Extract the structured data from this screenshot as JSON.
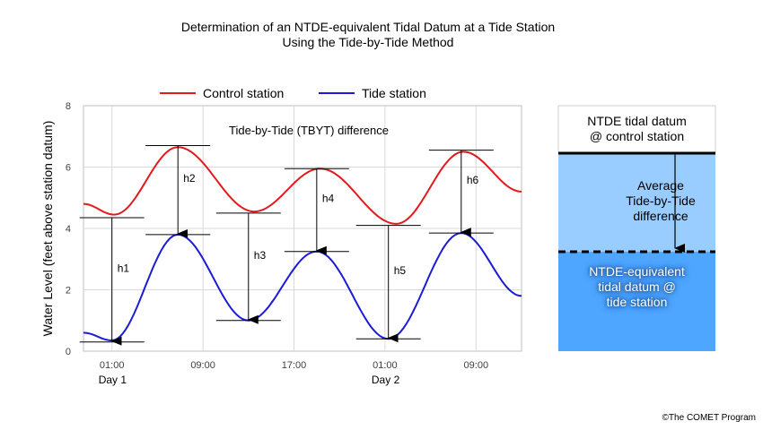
{
  "chart_data": {
    "type": "line",
    "title": "Determination of an NTDE-equivalent Tidal Datum at a Tide Station",
    "subtitle": "Using the Tide-by-Tide Method",
    "ylabel": "Water Level (feet above station datum)",
    "xlabel": "",
    "ylim": [
      0,
      8
    ],
    "yticks": [
      "0",
      "2",
      "4",
      "6",
      "8"
    ],
    "xticks": [
      "01:00",
      "09:00",
      "17:00",
      "01:00",
      "09:00"
    ],
    "day_labels": [
      "Day 1",
      "Day 2"
    ],
    "grid": true,
    "legend": "top",
    "annotation": "Tide-by-Tide (TBYT) difference",
    "series": [
      {
        "name": "Control station",
        "color": "#e31a1c",
        "extrema": [
          [
            -1.5,
            4.8
          ],
          [
            1.2,
            4.45
          ],
          [
            6.8,
            6.65
          ],
          [
            13.5,
            4.55
          ],
          [
            19.3,
            5.95
          ],
          [
            26.0,
            4.15
          ],
          [
            31.9,
            6.5
          ],
          [
            37.0,
            5.2
          ]
        ]
      },
      {
        "name": "Tide station",
        "color": "#1c1cd8",
        "extrema": [
          [
            -1.5,
            0.6
          ],
          [
            1.0,
            0.35
          ],
          [
            6.8,
            3.8
          ],
          [
            13.0,
            1.0
          ],
          [
            19.0,
            3.25
          ],
          [
            25.3,
            0.4
          ],
          [
            31.7,
            3.85
          ],
          [
            37.0,
            1.8
          ]
        ]
      }
    ],
    "differences": [
      {
        "label": "h1",
        "x": 1.0,
        "from": 4.35,
        "to": 0.3
      },
      {
        "label": "h2",
        "x": 6.8,
        "from": 6.7,
        "to": 3.8
      },
      {
        "label": "h3",
        "x": 13.0,
        "from": 4.5,
        "to": 1.0
      },
      {
        "label": "h4",
        "x": 19.0,
        "from": 5.95,
        "to": 3.25
      },
      {
        "label": "h5",
        "x": 25.3,
        "from": 4.1,
        "to": 0.4
      },
      {
        "label": "h6",
        "x": 31.7,
        "from": 6.55,
        "to": 3.85
      }
    ]
  },
  "datum_box": {
    "top_label": [
      "NTDE tidal datum",
      "@ control station"
    ],
    "middle_label": [
      "Average",
      "Tide-by-Tide",
      "difference"
    ],
    "bottom_label": [
      "NTDE-equivalent",
      "tidal datum @",
      "tide station"
    ],
    "colors": {
      "top": "#ffffff",
      "middle": "#99ccff",
      "bottom": "#4ea6ff"
    }
  },
  "copyright": "©The COMET Program"
}
